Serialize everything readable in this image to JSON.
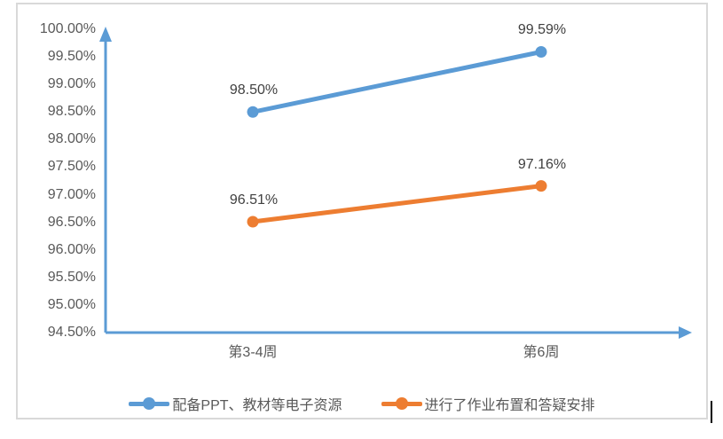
{
  "page": {
    "background": "#FFFFFF",
    "frame_border_color": "#D9D9D9"
  },
  "chart_data": {
    "type": "line",
    "title": "",
    "xlabel": "",
    "ylabel": "",
    "grid": false,
    "legend_position": "bottom",
    "marker": "circle",
    "axis_color": "#5B9BD5",
    "tick_text_color": "#595959",
    "data_label_text_color": "#404040",
    "categories": [
      "第3-4周",
      "第6周"
    ],
    "series": [
      {
        "name": "配备PPT、教材等电子资源",
        "color": "#5B9BD5",
        "values": [
          98.5,
          99.59
        ],
        "data_labels": [
          "98.50%",
          "99.59%"
        ]
      },
      {
        "name": "进行了作业布置和答疑安排",
        "color": "#ED7D31",
        "values": [
          96.51,
          97.16
        ],
        "data_labels": [
          "96.51%",
          "97.16%"
        ]
      }
    ],
    "y_axis": {
      "min": 94.5,
      "max": 100.0,
      "step": 0.5,
      "tick_labels": [
        "100.00%",
        "99.50%",
        "99.00%",
        "98.50%",
        "98.00%",
        "97.50%",
        "97.00%",
        "96.50%",
        "96.00%",
        "95.50%",
        "95.00%",
        "94.50%"
      ]
    }
  }
}
